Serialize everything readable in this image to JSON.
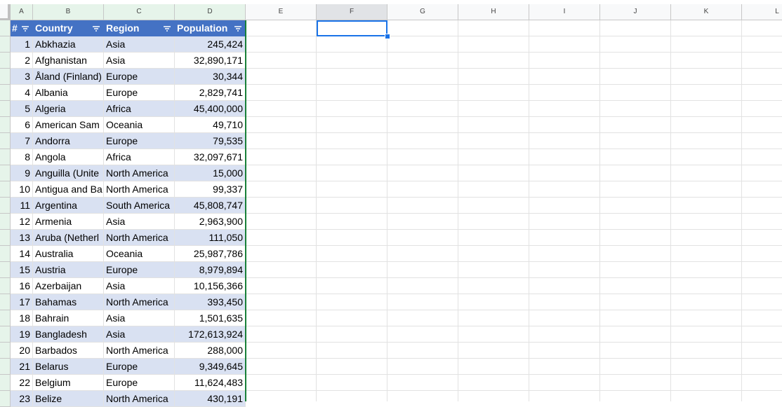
{
  "columns": [
    "A",
    "B",
    "C",
    "D",
    "E",
    "F",
    "G",
    "H",
    "I",
    "J",
    "K",
    "L"
  ],
  "selected_cell": "F1",
  "colors": {
    "header": "#4472c4",
    "band": "#d9e1f2",
    "selection": "#1a73e8"
  },
  "table": {
    "headers": [
      "#",
      "Country",
      "Region",
      "Population"
    ],
    "filter_icon": "filter-icon",
    "rows": [
      [
        "1",
        "Abkhazia",
        "Asia",
        "245,424"
      ],
      [
        "2",
        "Afghanistan",
        "Asia",
        "32,890,171"
      ],
      [
        "3",
        "Åland (Finland)",
        "Europe",
        "30,344"
      ],
      [
        "4",
        "Albania",
        "Europe",
        "2,829,741"
      ],
      [
        "5",
        "Algeria",
        "Africa",
        "45,400,000"
      ],
      [
        "6",
        "American Sam",
        "Oceania",
        "49,710"
      ],
      [
        "7",
        "Andorra",
        "Europe",
        "79,535"
      ],
      [
        "8",
        "Angola",
        "Africa",
        "32,097,671"
      ],
      [
        "9",
        "Anguilla (Unite",
        "North America",
        "15,000"
      ],
      [
        "10",
        "Antigua and Ba",
        "North America",
        "99,337"
      ],
      [
        "11",
        "Argentina",
        "South America",
        "45,808,747"
      ],
      [
        "12",
        "Armenia",
        "Asia",
        "2,963,900"
      ],
      [
        "13",
        "Aruba (Netherl",
        "North America",
        "111,050"
      ],
      [
        "14",
        "Australia",
        "Oceania",
        "25,987,786"
      ],
      [
        "15",
        "Austria",
        "Europe",
        "8,979,894"
      ],
      [
        "16",
        "Azerbaijan",
        "Asia",
        "10,156,366"
      ],
      [
        "17",
        "Bahamas",
        "North America",
        "393,450"
      ],
      [
        "18",
        "Bahrain",
        "Asia",
        "1,501,635"
      ],
      [
        "19",
        "Bangladesh",
        "Asia",
        "172,613,924"
      ],
      [
        "20",
        "Barbados",
        "North America",
        "288,000"
      ],
      [
        "21",
        "Belarus",
        "Europe",
        "9,349,645"
      ],
      [
        "22",
        "Belgium",
        "Europe",
        "11,624,483"
      ],
      [
        "23",
        "Belize",
        "North America",
        "430,191"
      ]
    ]
  }
}
